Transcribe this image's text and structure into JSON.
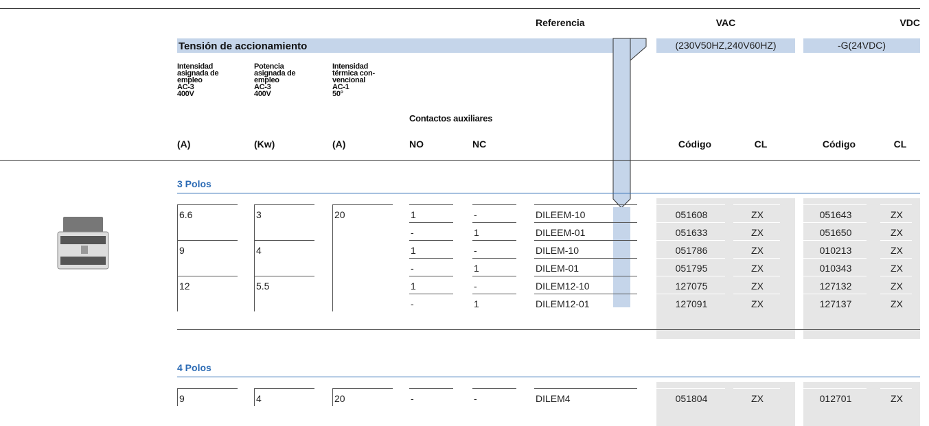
{
  "header": {
    "referencia": "Referencia",
    "vac": "VAC",
    "vdc": "VDC",
    "tension": "Tensión de accionamiento",
    "vac_voltage": "(230V50HZ,240V60HZ)",
    "vdc_voltage": "-G(24VDC)",
    "columns": [
      [
        "Intensidad",
        "asignada de",
        "empleo",
        "AC-3",
        "400V"
      ],
      [
        "Potencia",
        "asignada de",
        "empleo",
        "AC-3",
        "400V"
      ],
      [
        "Intensidad",
        "térmica con-",
        "vencional",
        "AC-1",
        "50°"
      ]
    ],
    "aux": "Contactos auxiliares",
    "units": [
      "(A)",
      "(Kw)",
      "(A)",
      "NO",
      "NC",
      "Código",
      "CL",
      "Código",
      "CL"
    ]
  },
  "sections": [
    {
      "title": "3 Polos",
      "rows": [
        [
          "6.6",
          "3",
          "20",
          "1",
          "-",
          "DILEEM-10",
          "051608",
          "ZX",
          "051643",
          "ZX"
        ],
        [
          null,
          null,
          null,
          "-",
          "1",
          "DILEEM-01",
          "051633",
          "ZX",
          "051650",
          "ZX"
        ],
        [
          "9",
          "4",
          null,
          "1",
          "-",
          "DILEM-10",
          "051786",
          "ZX",
          "010213",
          "ZX"
        ],
        [
          null,
          null,
          null,
          "-",
          "1",
          "DILEM-01",
          "051795",
          "ZX",
          "010343",
          "ZX"
        ],
        [
          "12",
          "5.5",
          null,
          "1",
          "-",
          "DILEM12-10",
          "127075",
          "ZX",
          "127132",
          "ZX"
        ],
        [
          null,
          null,
          null,
          "-",
          "1",
          "DILEM12-01",
          "127091",
          "ZX",
          "127137",
          "ZX"
        ]
      ]
    },
    {
      "title": "4 Polos",
      "rows": [
        [
          "9",
          "4",
          "20",
          "-",
          "-",
          "DILEM4",
          "051804",
          "ZX",
          "012701",
          "ZX"
        ]
      ]
    }
  ]
}
